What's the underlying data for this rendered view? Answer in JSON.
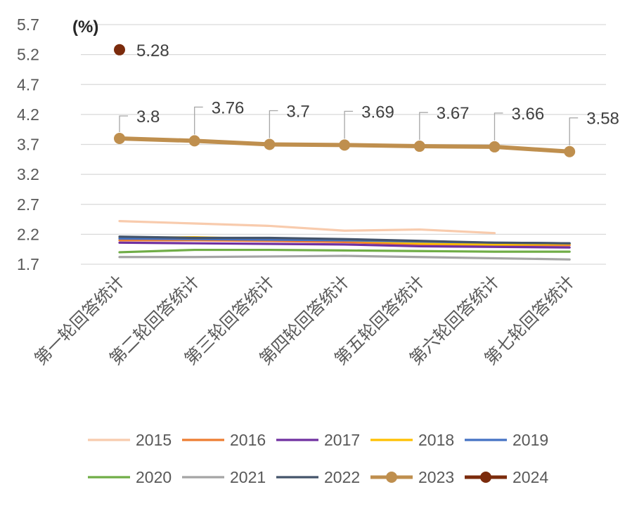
{
  "chart_data": {
    "type": "line",
    "unit_label": "(%)",
    "categories": [
      "第一轮回答统计",
      "第二轮回答统计",
      "第三轮回答统计",
      "第四轮回答统计",
      "第五轮回答统计",
      "第六轮回答统计",
      "第七轮回答统计"
    ],
    "yticks": [
      "5.7",
      "5.2",
      "4.7",
      "4.2",
      "3.7",
      "3.2",
      "2.7",
      "2.2",
      "1.7"
    ],
    "ylim": [
      1.7,
      5.7
    ],
    "grid": true,
    "legend_position": "bottom",
    "series": [
      {
        "name": "2015",
        "color": "#F8CBAD",
        "values": [
          2.42,
          2.38,
          2.34,
          2.26,
          2.28,
          2.22,
          null
        ]
      },
      {
        "name": "2016",
        "color": "#ED7D31",
        "values": [
          2.1,
          2.1,
          2.09,
          2.07,
          2.03,
          2.02,
          2.02
        ]
      },
      {
        "name": "2017",
        "color": "#7030A0",
        "values": [
          2.06,
          2.05,
          2.04,
          2.03,
          2.0,
          1.99,
          1.98
        ]
      },
      {
        "name": "2018",
        "color": "#FFC000",
        "values": [
          2.14,
          2.15,
          2.12,
          2.1,
          2.05,
          2.03,
          2.04
        ]
      },
      {
        "name": "2019",
        "color": "#4472C4",
        "values": [
          2.13,
          2.12,
          2.11,
          2.1,
          2.08,
          2.06,
          2.05
        ]
      },
      {
        "name": "2020",
        "color": "#70AD47",
        "values": [
          1.9,
          1.94,
          1.94,
          1.93,
          1.92,
          1.91,
          1.91
        ]
      },
      {
        "name": "2021",
        "color": "#A5A5A5",
        "values": [
          1.82,
          1.82,
          1.83,
          1.84,
          1.82,
          1.8,
          1.78
        ]
      },
      {
        "name": "2022",
        "color": "#44546A",
        "values": [
          2.16,
          2.14,
          2.14,
          2.12,
          2.09,
          2.06,
          2.05
        ]
      },
      {
        "name": "2023",
        "color": "#BF8F4E",
        "values": [
          3.8,
          3.76,
          3.7,
          3.69,
          3.67,
          3.66,
          3.58
        ],
        "labels": [
          "3.8",
          "3.76",
          "3.7",
          "3.69",
          "3.67",
          "3.66",
          "3.58"
        ],
        "markers": true
      },
      {
        "name": "2024",
        "color": "#7B2B0C",
        "values": [
          5.28,
          null,
          null,
          null,
          null,
          null,
          null
        ],
        "labels": [
          "5.28"
        ],
        "markers": true
      }
    ]
  }
}
